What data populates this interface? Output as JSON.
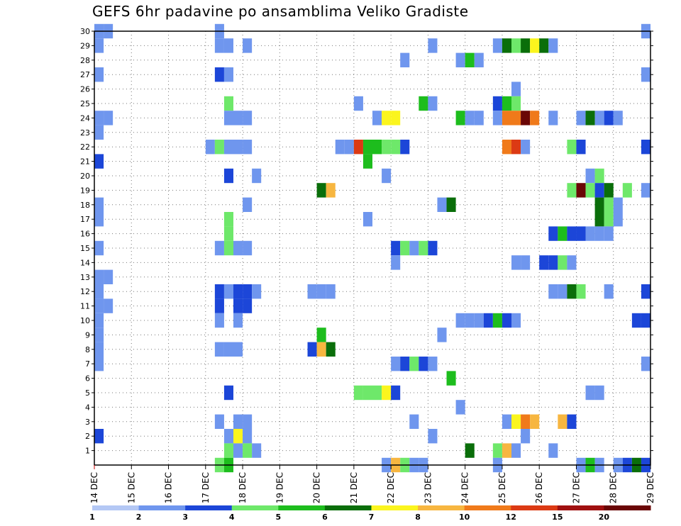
{
  "chart_data": {
    "type": "heatmap",
    "title": "GEFS 6hr padavine po ansamblima Veliko Gradiste",
    "x_axis": {
      "range_days": [
        0,
        15
      ],
      "tick_labels": [
        "14 DEC",
        "15 DEC",
        "16 DEC",
        "17 DEC",
        "18 DEC",
        "19 DEC",
        "20 DEC",
        "21 DEC",
        "22 DEC",
        "23 DEC",
        "24 DEC",
        "25 DEC",
        "26 DEC",
        "27 DEC",
        "28 DEC",
        "29 DEC"
      ],
      "step_days": 0.25
    },
    "y_axis": {
      "range": [
        0,
        30
      ],
      "tick_labels": [
        "1",
        "2",
        "3",
        "4",
        "5",
        "6",
        "7",
        "8",
        "9",
        "10",
        "11",
        "12",
        "13",
        "14",
        "15",
        "16",
        "17",
        "18",
        "19",
        "20",
        "21",
        "22",
        "23",
        "24",
        "25",
        "26",
        "27",
        "28",
        "29",
        "30"
      ]
    },
    "grid": true,
    "colorbar": {
      "placement": "bottom",
      "labels": [
        "1",
        "2",
        "3",
        "4",
        "5",
        "6",
        "7",
        "8",
        "10",
        "12",
        "15",
        "20"
      ],
      "colors": [
        "#b4c8f5",
        "#6f96ee",
        "#1c46d8",
        "#6ee86a",
        "#1dbd1d",
        "#0a6e0a",
        "#fbf51e",
        "#f7b640",
        "#f07a1a",
        "#dc3a14",
        "#a01010",
        "#6a0606"
      ]
    },
    "cells": [
      [
        30,
        0,
        1
      ],
      [
        30,
        0.25,
        1
      ],
      [
        30,
        3.25,
        1
      ],
      [
        30,
        14.75,
        1
      ],
      [
        29,
        0,
        1
      ],
      [
        29,
        3.25,
        1
      ],
      [
        29,
        3.5,
        1
      ],
      [
        29,
        4,
        1
      ],
      [
        29,
        9,
        1
      ],
      [
        29,
        10.75,
        1
      ],
      [
        29,
        11,
        5
      ],
      [
        29,
        11.25,
        3
      ],
      [
        29,
        11.5,
        5
      ],
      [
        29,
        11.75,
        6
      ],
      [
        29,
        12,
        5
      ],
      [
        29,
        12.25,
        1
      ],
      [
        28,
        8.25,
        1
      ],
      [
        28,
        9.75,
        1
      ],
      [
        28,
        10,
        4
      ],
      [
        28,
        10.25,
        1
      ],
      [
        27,
        0,
        1
      ],
      [
        27,
        3.25,
        2
      ],
      [
        27,
        3.5,
        1
      ],
      [
        27,
        14.75,
        1
      ],
      [
        26,
        11.25,
        1
      ],
      [
        25,
        3.5,
        3
      ],
      [
        25,
        7,
        1
      ],
      [
        25,
        8.75,
        4
      ],
      [
        25,
        9,
        1
      ],
      [
        25,
        10.75,
        2
      ],
      [
        25,
        11,
        4
      ],
      [
        25,
        11.25,
        3
      ],
      [
        24,
        0,
        1
      ],
      [
        24,
        0.25,
        1
      ],
      [
        24,
        3.5,
        1
      ],
      [
        24,
        3.75,
        1
      ],
      [
        24,
        4,
        1
      ],
      [
        24,
        7.5,
        1
      ],
      [
        24,
        7.75,
        6
      ],
      [
        24,
        8,
        6
      ],
      [
        24,
        9.75,
        4
      ],
      [
        24,
        10,
        1
      ],
      [
        24,
        10.25,
        1
      ],
      [
        24,
        10.75,
        1
      ],
      [
        24,
        11,
        8
      ],
      [
        24,
        11.25,
        8
      ],
      [
        24,
        11.5,
        11
      ],
      [
        24,
        11.75,
        8
      ],
      [
        24,
        12.25,
        1
      ],
      [
        24,
        13,
        1
      ],
      [
        24,
        13.25,
        5
      ],
      [
        24,
        13.5,
        1
      ],
      [
        24,
        13.75,
        2
      ],
      [
        24,
        14,
        1
      ],
      [
        23,
        0,
        1
      ],
      [
        22,
        3,
        1
      ],
      [
        22,
        3.25,
        3
      ],
      [
        22,
        3.5,
        1
      ],
      [
        22,
        3.75,
        1
      ],
      [
        22,
        4,
        1
      ],
      [
        22,
        6.5,
        1
      ],
      [
        22,
        6.75,
        1
      ],
      [
        22,
        7,
        9
      ],
      [
        22,
        7.25,
        4
      ],
      [
        22,
        7.5,
        4
      ],
      [
        22,
        7.75,
        3
      ],
      [
        22,
        8,
        3
      ],
      [
        22,
        8.25,
        2
      ],
      [
        22,
        11,
        8
      ],
      [
        22,
        11.25,
        9
      ],
      [
        22,
        11.5,
        1
      ],
      [
        22,
        12.75,
        3
      ],
      [
        22,
        13,
        2
      ],
      [
        22,
        14.75,
        2
      ],
      [
        21,
        0,
        2
      ],
      [
        21,
        7.25,
        4
      ],
      [
        20,
        3.5,
        2
      ],
      [
        20,
        4.25,
        1
      ],
      [
        20,
        7.75,
        1
      ],
      [
        20,
        13.25,
        1
      ],
      [
        20,
        13.5,
        3
      ],
      [
        19,
        6,
        5
      ],
      [
        19,
        6.25,
        7
      ],
      [
        19,
        12.75,
        3
      ],
      [
        19,
        13,
        11
      ],
      [
        19,
        13.25,
        3
      ],
      [
        19,
        13.5,
        2
      ],
      [
        19,
        13.75,
        5
      ],
      [
        19,
        14.25,
        3
      ],
      [
        19,
        14.75,
        1
      ],
      [
        18,
        0,
        1
      ],
      [
        18,
        4,
        1
      ],
      [
        18,
        9.25,
        1
      ],
      [
        18,
        9.5,
        5
      ],
      [
        18,
        13.5,
        5
      ],
      [
        18,
        13.75,
        3
      ],
      [
        18,
        14,
        1
      ],
      [
        17,
        0,
        1
      ],
      [
        17,
        3.5,
        3
      ],
      [
        17,
        7.25,
        1
      ],
      [
        17,
        13.5,
        5
      ],
      [
        17,
        13.75,
        3
      ],
      [
        17,
        14,
        1
      ],
      [
        16,
        3.5,
        3
      ],
      [
        16,
        12.25,
        2
      ],
      [
        16,
        12.5,
        4
      ],
      [
        16,
        12.75,
        2
      ],
      [
        16,
        13,
        2
      ],
      [
        16,
        13.25,
        1
      ],
      [
        16,
        13.5,
        1
      ],
      [
        16,
        13.75,
        1
      ],
      [
        15,
        0,
        1
      ],
      [
        15,
        3.25,
        1
      ],
      [
        15,
        3.5,
        3
      ],
      [
        15,
        3.75,
        1
      ],
      [
        15,
        4,
        1
      ],
      [
        15,
        8,
        2
      ],
      [
        15,
        8.25,
        3
      ],
      [
        15,
        8.5,
        1
      ],
      [
        15,
        8.75,
        3
      ],
      [
        15,
        9,
        2
      ],
      [
        14,
        8,
        1
      ],
      [
        14,
        11.25,
        1
      ],
      [
        14,
        11.5,
        1
      ],
      [
        14,
        12,
        2
      ],
      [
        14,
        12.25,
        2
      ],
      [
        14,
        12.5,
        3
      ],
      [
        14,
        12.75,
        1
      ],
      [
        13,
        0,
        1
      ],
      [
        13,
        0.25,
        1
      ],
      [
        12,
        0,
        1
      ],
      [
        12,
        3.25,
        2
      ],
      [
        12,
        3.5,
        1
      ],
      [
        12,
        3.75,
        2
      ],
      [
        12,
        4,
        2
      ],
      [
        12,
        4.25,
        1
      ],
      [
        12,
        5.75,
        1
      ],
      [
        12,
        6,
        1
      ],
      [
        12,
        6.25,
        1
      ],
      [
        12,
        12.25,
        1
      ],
      [
        12,
        12.5,
        1
      ],
      [
        12,
        12.75,
        5
      ],
      [
        12,
        13,
        3
      ],
      [
        12,
        13.75,
        1
      ],
      [
        12,
        14.75,
        2
      ],
      [
        11,
        0,
        1
      ],
      [
        11,
        0.25,
        1
      ],
      [
        11,
        3.25,
        2
      ],
      [
        11,
        3.75,
        2
      ],
      [
        11,
        4,
        2
      ],
      [
        10,
        0,
        1
      ],
      [
        10,
        3.25,
        1
      ],
      [
        10,
        3.75,
        1
      ],
      [
        10,
        9.75,
        1
      ],
      [
        10,
        10,
        1
      ],
      [
        10,
        10.25,
        1
      ],
      [
        10,
        10.5,
        2
      ],
      [
        10,
        10.75,
        4
      ],
      [
        10,
        11,
        2
      ],
      [
        10,
        11.25,
        1
      ],
      [
        10,
        14.5,
        2
      ],
      [
        10,
        14.75,
        2
      ],
      [
        9,
        0,
        1
      ],
      [
        9,
        6,
        4
      ],
      [
        9,
        9.25,
        1
      ],
      [
        8,
        0,
        1
      ],
      [
        8,
        3.25,
        1
      ],
      [
        8,
        3.5,
        1
      ],
      [
        8,
        3.75,
        1
      ],
      [
        8,
        5.75,
        2
      ],
      [
        8,
        6,
        7
      ],
      [
        8,
        6.25,
        5
      ],
      [
        7,
        0,
        1
      ],
      [
        7,
        8,
        1
      ],
      [
        7,
        8.25,
        2
      ],
      [
        7,
        8.5,
        3
      ],
      [
        7,
        8.75,
        2
      ],
      [
        7,
        9,
        1
      ],
      [
        7,
        14.75,
        1
      ],
      [
        6,
        9.5,
        4
      ],
      [
        5,
        3.5,
        2
      ],
      [
        5,
        7,
        3
      ],
      [
        5,
        7.25,
        3
      ],
      [
        5,
        7.5,
        3
      ],
      [
        5,
        7.75,
        6
      ],
      [
        5,
        8,
        2
      ],
      [
        5,
        13.25,
        1
      ],
      [
        5,
        13.5,
        1
      ],
      [
        4,
        9.75,
        1
      ],
      [
        3,
        3.25,
        1
      ],
      [
        3,
        3.75,
        1
      ],
      [
        3,
        4,
        1
      ],
      [
        3,
        8.5,
        1
      ],
      [
        3,
        11,
        1
      ],
      [
        3,
        11.25,
        6
      ],
      [
        3,
        11.5,
        8
      ],
      [
        3,
        11.75,
        7
      ],
      [
        3,
        12.5,
        7
      ],
      [
        3,
        12.75,
        2
      ],
      [
        2,
        0,
        2
      ],
      [
        2,
        3.5,
        1
      ],
      [
        2,
        3.75,
        6
      ],
      [
        2,
        4,
        1
      ],
      [
        2,
        9,
        1
      ],
      [
        2,
        11.5,
        1
      ],
      [
        1,
        3.5,
        3
      ],
      [
        1,
        3.75,
        1
      ],
      [
        1,
        4,
        3
      ],
      [
        1,
        4.25,
        1
      ],
      [
        1,
        10,
        5
      ],
      [
        1,
        10.75,
        3
      ],
      [
        1,
        11,
        7
      ],
      [
        1,
        11.25,
        1
      ],
      [
        1,
        12.25,
        1
      ],
      [
        0,
        3.25,
        3
      ],
      [
        0,
        3.5,
        4
      ],
      [
        0,
        7.75,
        1
      ],
      [
        0,
        8,
        7
      ],
      [
        0,
        8.25,
        3
      ],
      [
        0,
        8.5,
        1
      ],
      [
        0,
        8.75,
        1
      ],
      [
        0,
        10.75,
        1
      ],
      [
        0,
        13,
        1
      ],
      [
        0,
        13.25,
        4
      ],
      [
        0,
        13.5,
        1
      ],
      [
        0,
        14,
        1
      ],
      [
        0,
        14.25,
        2
      ],
      [
        0,
        14.5,
        5
      ],
      [
        0,
        14.75,
        2
      ]
    ]
  }
}
